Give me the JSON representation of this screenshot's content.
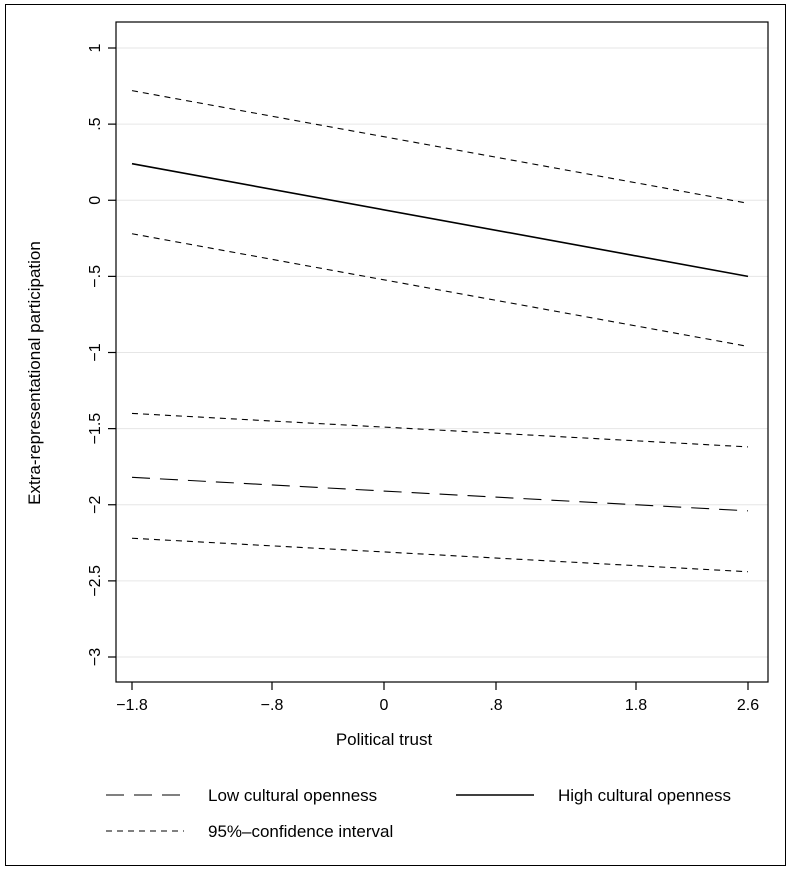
{
  "chart_data": {
    "type": "line",
    "xlabel": "Political trust",
    "ylabel": "Extra-representational participation",
    "xlim": [
      -1.8,
      2.6
    ],
    "ylim": [
      -3,
      1
    ],
    "x_ticks": [
      -1.8,
      -0.8,
      0,
      0.8,
      1.8,
      2.6
    ],
    "x_tick_labels": [
      "−1.8",
      "−.8",
      "0",
      ".8",
      "1.8",
      "2.6"
    ],
    "y_ticks": [
      1,
      0.5,
      0,
      -0.5,
      -1,
      -1.5,
      -2,
      -2.5,
      -3
    ],
    "y_tick_labels": [
      "1",
      ".5",
      "0",
      "−.5",
      "−1",
      "−1.5",
      "−2",
      "−2.5",
      "−3"
    ],
    "grid": "horizontal",
    "series": [
      {
        "name": "High cultural openness",
        "style": "solid",
        "x": [
          -1.8,
          2.6
        ],
        "y": [
          0.24,
          -0.5
        ]
      },
      {
        "name": "95%–confidence interval",
        "style": "short-dash",
        "x": [
          -1.8,
          2.6
        ],
        "y": [
          0.72,
          -0.02
        ]
      },
      {
        "name": "",
        "style": "short-dash",
        "x": [
          -1.8,
          2.6
        ],
        "y": [
          -0.22,
          -0.96
        ]
      },
      {
        "name": "Low cultural openness",
        "style": "long-dash",
        "x": [
          -1.8,
          2.6
        ],
        "y": [
          -1.82,
          -2.04
        ]
      },
      {
        "name": "",
        "style": "short-dash",
        "x": [
          -1.8,
          2.6
        ],
        "y": [
          -1.4,
          -1.62
        ]
      },
      {
        "name": "",
        "style": "short-dash",
        "x": [
          -1.8,
          2.6
        ],
        "y": [
          -2.22,
          -2.44
        ]
      }
    ],
    "legend": {
      "placement": "bottom",
      "items": [
        {
          "label": "Low cultural openness",
          "style": "long-dash"
        },
        {
          "label": "High cultural openness",
          "style": "solid"
        },
        {
          "label": "95%–confidence interval",
          "style": "short-dash"
        }
      ]
    }
  }
}
